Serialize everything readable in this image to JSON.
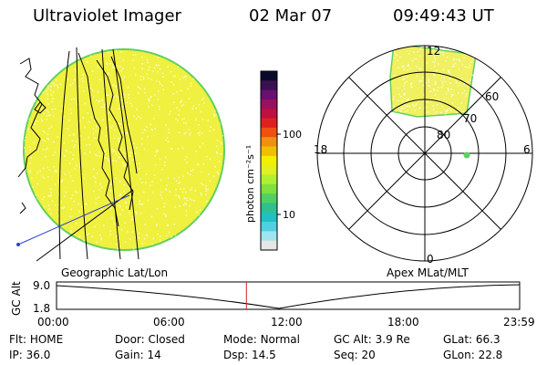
{
  "header": {
    "title": "Ultraviolet Imager",
    "date": "02 Mar 07",
    "time": "09:49:43 UT"
  },
  "colorbar": {
    "unit_label": "photon cm⁻²s⁻¹",
    "tick_labels": [
      "100",
      "10"
    ],
    "colors": [
      "#0a0a2a",
      "#3a1050",
      "#6a1070",
      "#9a1060",
      "#c01040",
      "#e02020",
      "#f05010",
      "#f09010",
      "#f0c000",
      "#f0f000",
      "#e0f020",
      "#b0f030",
      "#80e040",
      "#50d060",
      "#30c090",
      "#20c0c0",
      "#50d0e0",
      "#a0e4f0",
      "#e6e6e6"
    ]
  },
  "polar": {
    "mlt_labels": [
      "12",
      "18",
      "6",
      "0"
    ],
    "mlat_labels": [
      "60",
      "70",
      "80"
    ],
    "colors": {
      "rings": "#000000",
      "emission": "#f0f060",
      "edge": "#60d060",
      "dot": "#60d060"
    }
  },
  "disk": {
    "colors": {
      "fill": "#f0f040",
      "edge": "#60d060",
      "speckle": "#ffffff",
      "coast": "#000000",
      "track": "#3040d0"
    }
  },
  "altitude_panel": {
    "left_label": "Geographic Lat/Lon",
    "right_label": "Apex MLat/MLT",
    "axis_label": "GC Alt",
    "y_ticks": [
      "9.0",
      "1.8"
    ],
    "x_ticks": [
      "00:00",
      "06:00",
      "12:00",
      "18:00",
      "23:59"
    ],
    "current_time_fraction": 0.41,
    "colors": {
      "curve": "#000000",
      "marker": "#d02020"
    }
  },
  "status": {
    "row1": [
      {
        "label": "Flt:",
        "value": "HOME"
      },
      {
        "label": "Door:",
        "value": "Closed"
      },
      {
        "label": "Mode:",
        "value": "Normal"
      },
      {
        "label": "GC Alt:",
        "value": "3.9 Re"
      },
      {
        "label": "GLat:",
        "value": "66.3"
      }
    ],
    "row2": [
      {
        "label": "IP:",
        "value": "36.0"
      },
      {
        "label": "Gain:",
        "value": "14"
      },
      {
        "label": "Dsp:",
        "value": "14.5"
      },
      {
        "label": "Seq:",
        "value": "20"
      },
      {
        "label": "GLon:",
        "value": "22.8"
      }
    ]
  }
}
